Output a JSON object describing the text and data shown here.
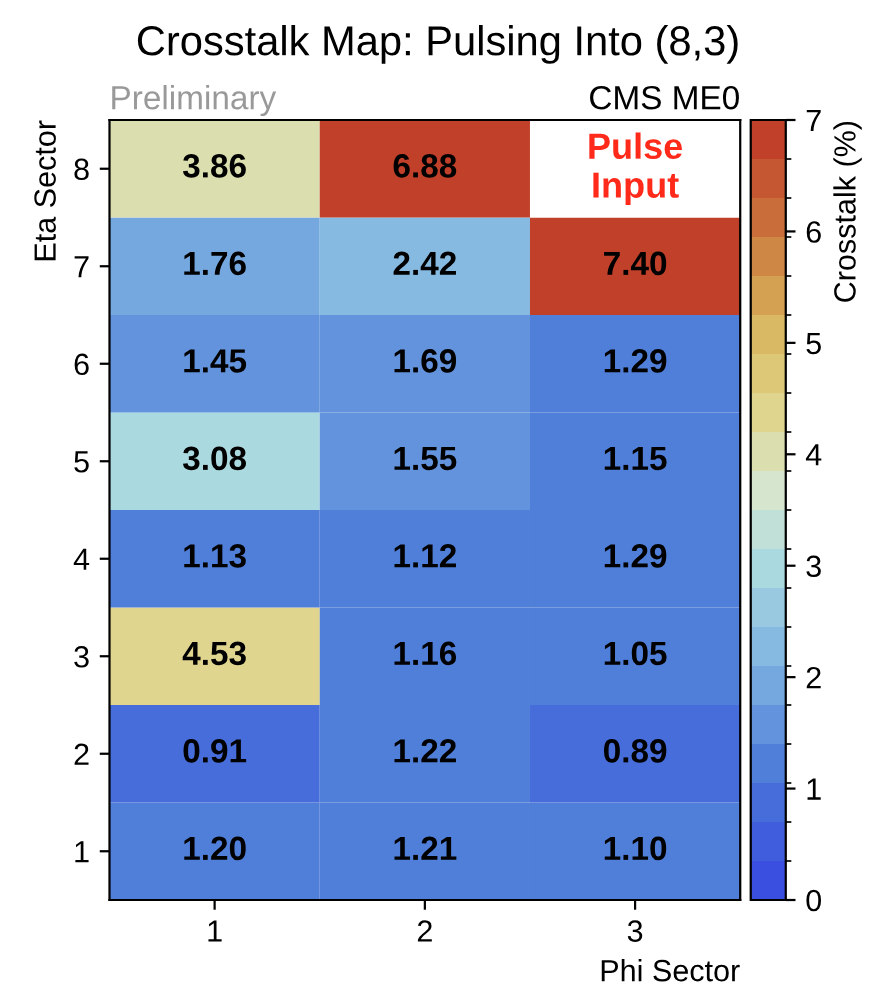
{
  "chart_data": {
    "type": "heatmap",
    "title": "Crosstalk Map: Pulsing Into (8,3)",
    "xlabel": "Phi Sector",
    "ylabel": "Eta Sector",
    "clabel": "Crosstalk (%)",
    "annotations": [
      "Preliminary",
      "CMS ME0"
    ],
    "categories": [
      "1",
      "2",
      "3"
    ],
    "y_categories": [
      "8",
      "7",
      "6",
      "5",
      "4",
      "3",
      "2",
      "1"
    ],
    "cells": [
      [
        3.86,
        6.88,
        null
      ],
      [
        1.76,
        2.42,
        7.4
      ],
      [
        1.45,
        1.69,
        1.29
      ],
      [
        3.08,
        1.55,
        1.15
      ],
      [
        1.13,
        1.12,
        1.29
      ],
      [
        4.53,
        1.16,
        1.05
      ],
      [
        0.91,
        1.22,
        0.89
      ],
      [
        1.2,
        1.21,
        1.1
      ]
    ],
    "cell_labels": [
      [
        "3.86",
        "6.88",
        "Pulse\nInput"
      ],
      [
        "1.76",
        "2.42",
        "7.40"
      ],
      [
        "1.45",
        "1.69",
        "1.29"
      ],
      [
        "3.08",
        "1.55",
        "1.15"
      ],
      [
        "1.13",
        "1.12",
        "1.29"
      ],
      [
        "4.53",
        "1.16",
        "1.05"
      ],
      [
        "0.91",
        "1.22",
        "0.89"
      ],
      [
        "1.20",
        "1.21",
        "1.10"
      ]
    ],
    "clim": [
      0,
      7
    ],
    "cticks": [
      0,
      1,
      2,
      3,
      4,
      5,
      6,
      7
    ],
    "data_labels": true
  }
}
